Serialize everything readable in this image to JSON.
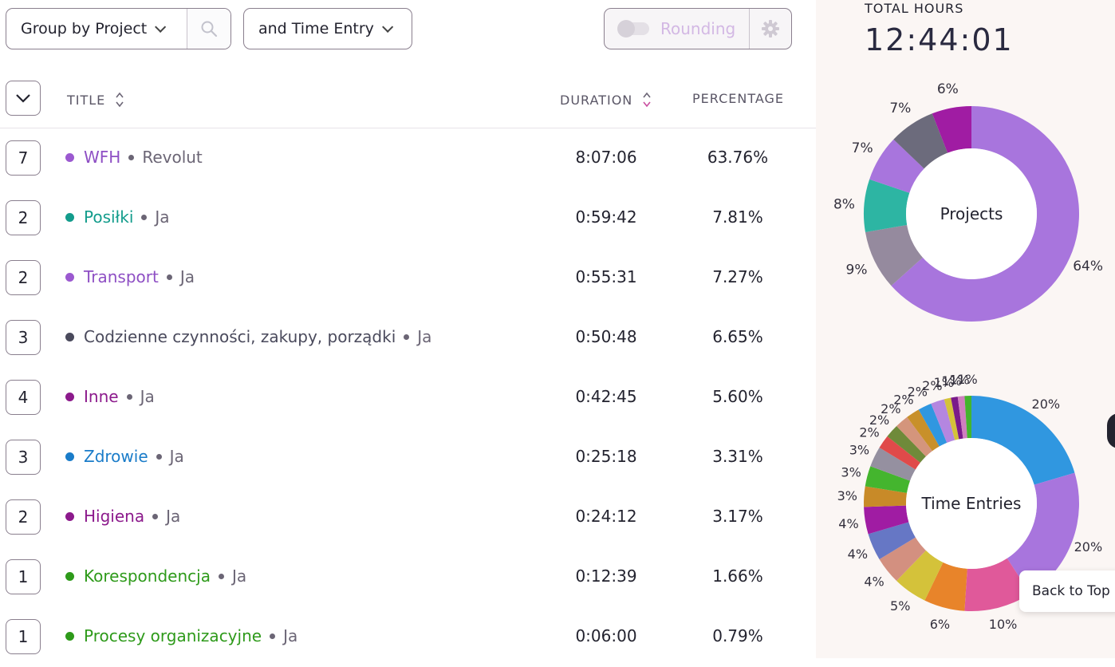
{
  "toolbar": {
    "group_label": "Group by Project",
    "time_label": "and Time Entry",
    "rounding_label": "Rounding"
  },
  "table": {
    "columns": {
      "title": "TITLE",
      "duration": "DURATION",
      "percentage": "PERCENTAGE"
    },
    "rows": [
      {
        "count": "7",
        "project": "WFH",
        "client": "Revolut",
        "duration": "8:07:06",
        "percentage": "63.76%",
        "color": "#9b59d0"
      },
      {
        "count": "2",
        "project": "Posiłki",
        "client": "Ja",
        "duration": "0:59:42",
        "percentage": "7.81%",
        "color": "#139c8c"
      },
      {
        "count": "2",
        "project": "Transport",
        "client": "Ja",
        "duration": "0:55:31",
        "percentage": "7.27%",
        "color": "#9b59d0"
      },
      {
        "count": "3",
        "project": "Codzienne czynności, zakupy, porządki",
        "client": "Ja",
        "duration": "0:50:48",
        "percentage": "6.65%",
        "color": "#4a4a5c"
      },
      {
        "count": "4",
        "project": "Inne",
        "client": "Ja",
        "duration": "0:42:45",
        "percentage": "5.60%",
        "color": "#8c1a8c"
      },
      {
        "count": "3",
        "project": "Zdrowie",
        "client": "Ja",
        "duration": "0:25:18",
        "percentage": "3.31%",
        "color": "#1a7cc9"
      },
      {
        "count": "2",
        "project": "Higiena",
        "client": "Ja",
        "duration": "0:24:12",
        "percentage": "3.17%",
        "color": "#8c1a8c"
      },
      {
        "count": "1",
        "project": "Korespondencja",
        "client": "Ja",
        "duration": "0:12:39",
        "percentage": "1.66%",
        "color": "#2e9a1a"
      },
      {
        "count": "1",
        "project": "Procesy organizacyjne",
        "client": "Ja",
        "duration": "0:06:00",
        "percentage": "0.79%",
        "color": "#2e9a1a"
      }
    ]
  },
  "summary": {
    "total_label": "TOTAL HOURS",
    "total_value": "12:44:01",
    "back_to_top": "Back to Top"
  },
  "chart_data": [
    {
      "type": "pie",
      "title": "Projects",
      "labels": [
        "64%",
        "9%",
        "8%",
        "7%",
        "7%",
        "6%"
      ],
      "values": [
        64,
        9,
        8,
        7,
        7,
        6
      ],
      "colors": [
        "#a875dd",
        "#958a9e",
        "#2db5a3",
        "#a875dd",
        "#6c6b7c",
        "#a01ca3"
      ]
    },
    {
      "type": "pie",
      "title": "Time Entries",
      "labels": [
        "20%",
        "20%",
        "10%",
        "6%",
        "5%",
        "4%",
        "4%",
        "4%",
        "3%",
        "3%",
        "3%",
        "2%",
        "2%",
        "2%",
        "2%",
        "2%",
        "2%",
        "1%",
        "1%",
        "1%",
        "1%"
      ],
      "values": [
        20,
        20,
        10,
        6,
        5,
        4,
        4,
        4,
        3,
        3,
        3,
        2,
        2,
        2,
        2,
        2,
        2,
        1,
        1,
        1,
        1
      ],
      "colors": [
        "#3097e0",
        "#a875dd",
        "#e0599a",
        "#e8842a",
        "#d4c23a",
        "#d39080",
        "#6677c5",
        "#a01ca3",
        "#c88a28",
        "#44b52e",
        "#9590a0",
        "#e04a4a",
        "#6f8a3a",
        "#d4957c",
        "#c8902a",
        "#3097e0",
        "#b486e0",
        "#d4c23a",
        "#7a1a8a",
        "#d07fc0",
        "#44b52e"
      ]
    }
  ]
}
